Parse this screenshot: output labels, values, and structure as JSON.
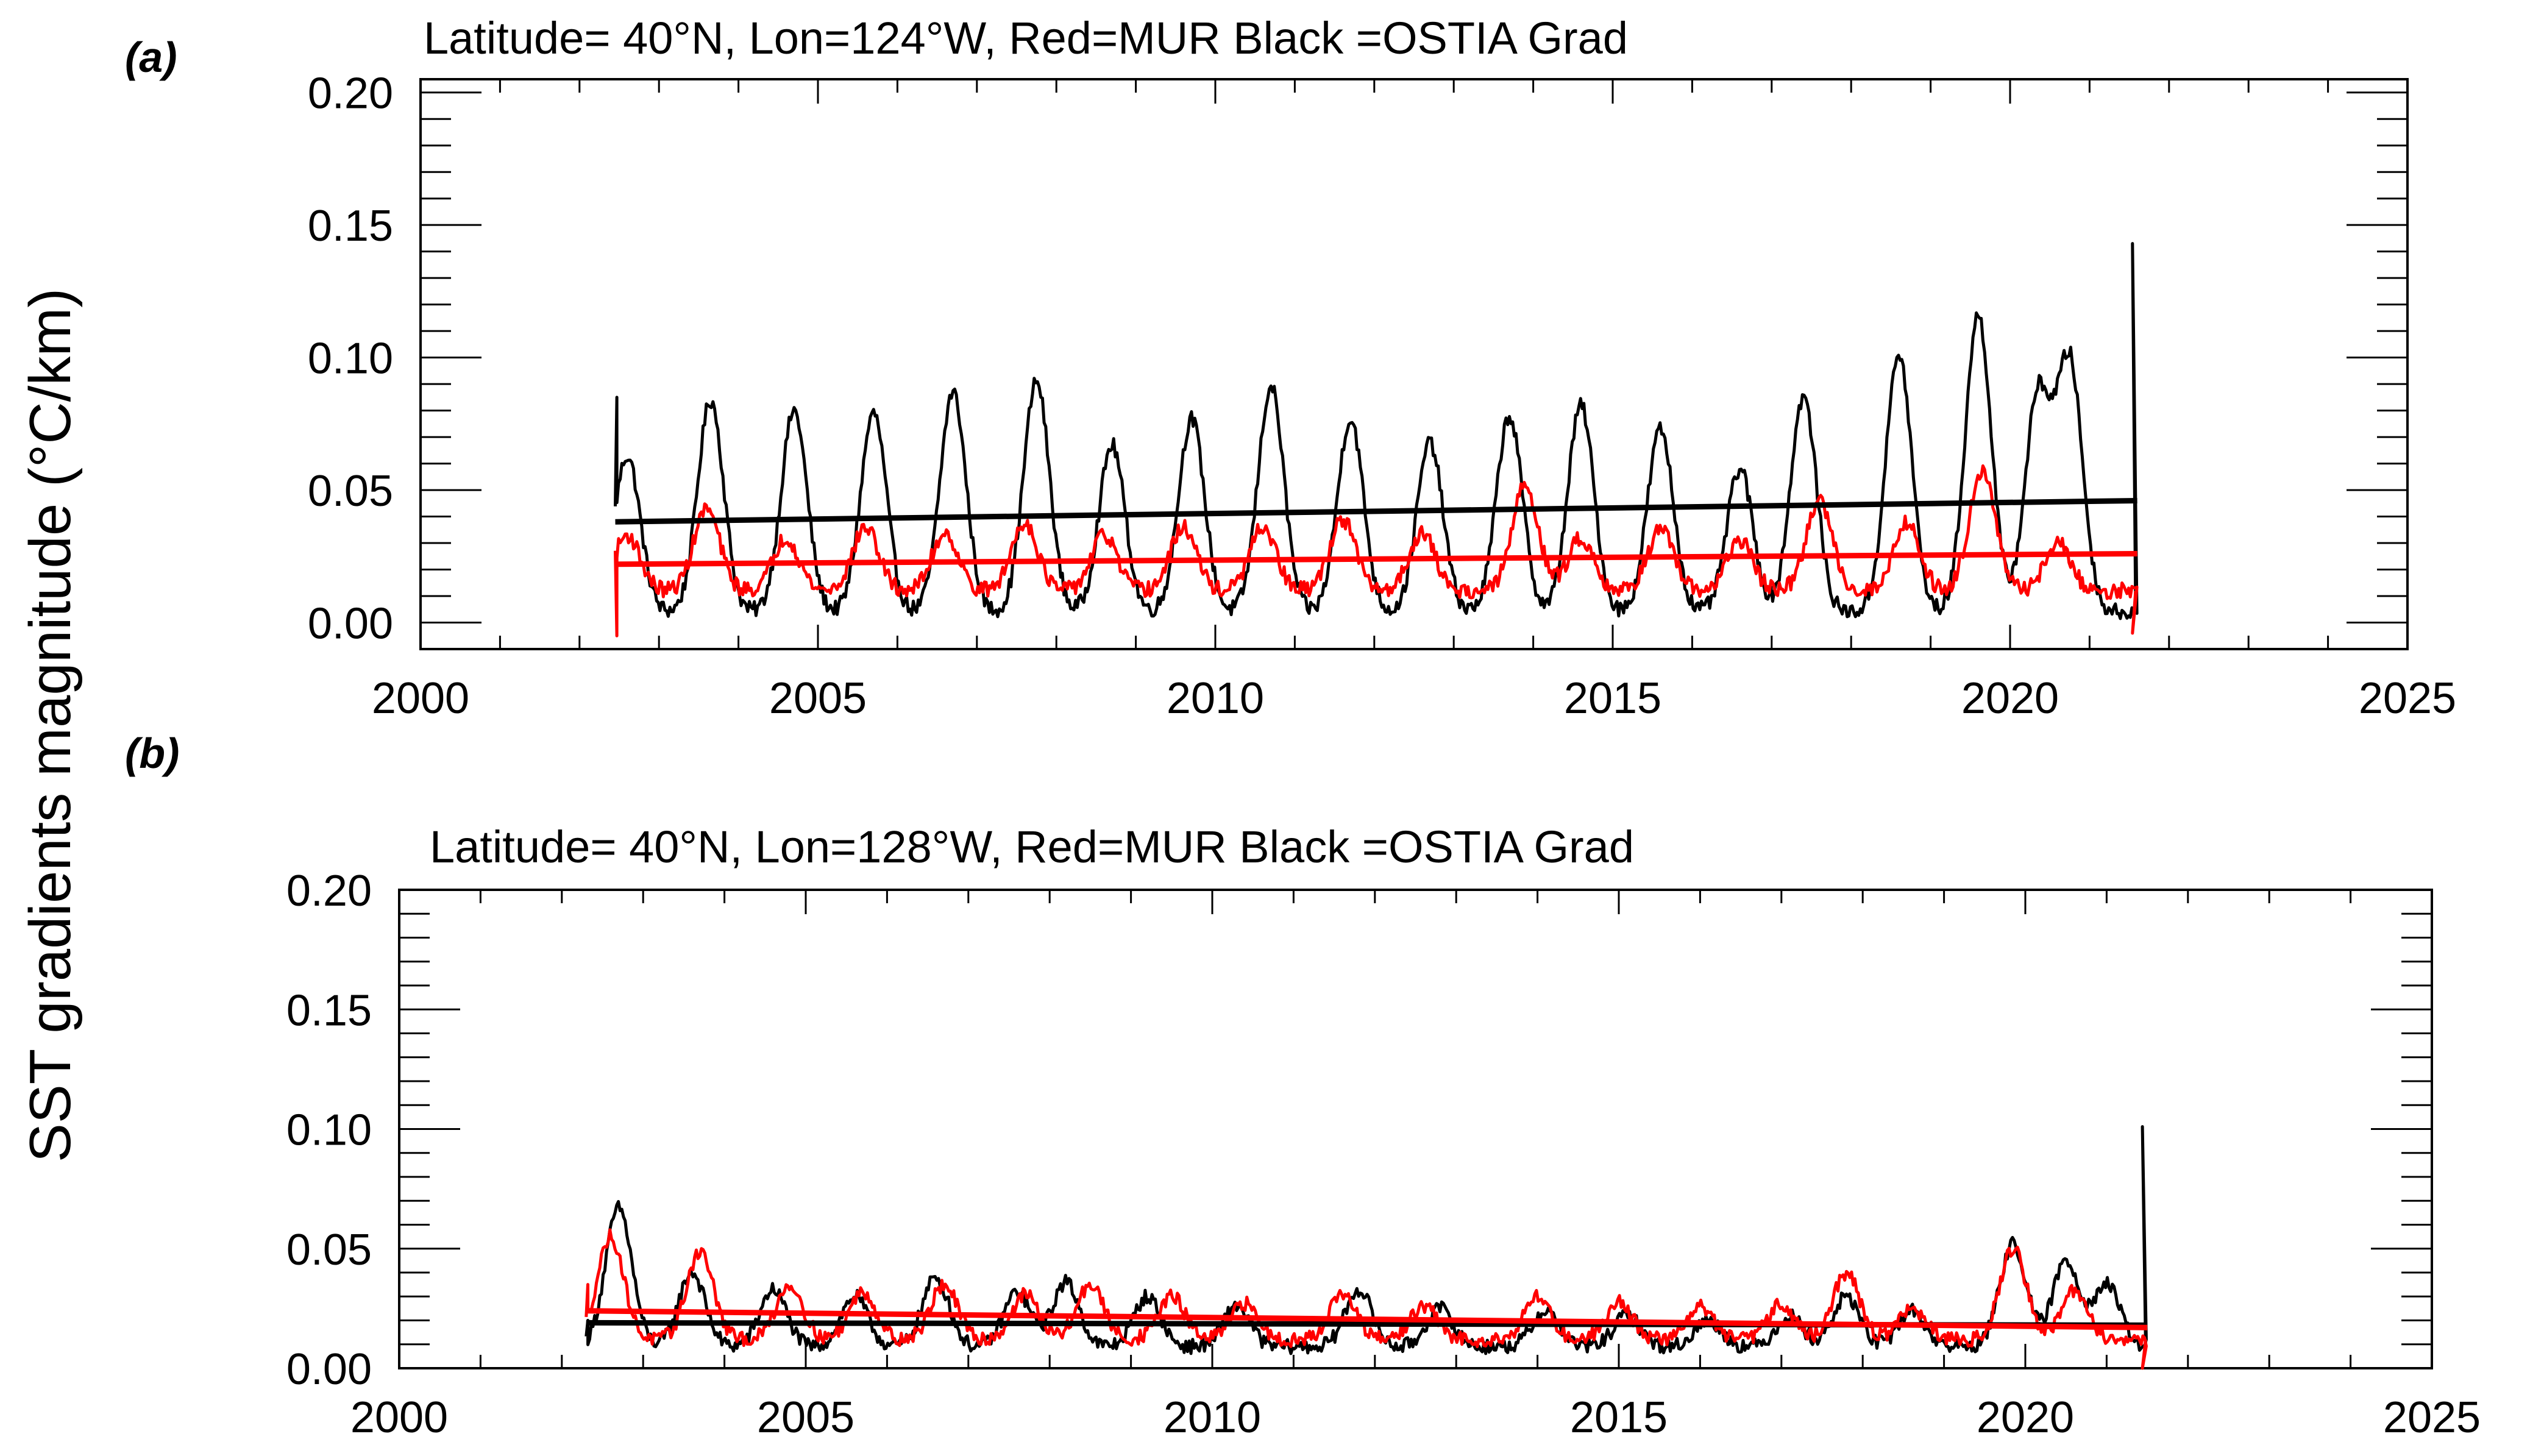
{
  "figure": {
    "ylabel": "SST gradients magnitude (°C/km)"
  },
  "chart_data": [
    {
      "type": "line",
      "panel_label": "(a)",
      "title": "Latitude= 40°N, Lon=124°W, Red=MUR Black =OSTIA Grad",
      "xlim": [
        2000,
        2025
      ],
      "ylim": [
        -0.01,
        0.205
      ],
      "xticks": [
        2000,
        2005,
        2010,
        2015,
        2020,
        2025
      ],
      "xtick_labels": [
        "2000",
        "2005",
        "2010",
        "2015",
        "2020",
        "2025"
      ],
      "yticks": [
        0.0,
        0.05,
        0.1,
        0.15,
        0.2
      ],
      "ytick_labels": [
        "0.00",
        "0.05",
        "0.10",
        "0.15",
        "0.20"
      ],
      "series": [
        {
          "name": "OSTIA",
          "color": "#000000",
          "x_start": 2002.45,
          "x_end": 2021.6,
          "start_value": 0.085,
          "baseline": 0.004,
          "annual_peaks": [
            [
              2002.6,
              0.063
            ],
            [
              2003.65,
              0.084
            ],
            [
              2004.7,
              0.08
            ],
            [
              2005.7,
              0.079
            ],
            [
              2006.7,
              0.087
            ],
            [
              2007.75,
              0.091
            ],
            [
              2008.7,
              0.067
            ],
            [
              2009.7,
              0.077
            ],
            [
              2010.7,
              0.089
            ],
            [
              2011.7,
              0.077
            ],
            [
              2012.7,
              0.068
            ],
            [
              2013.7,
              0.078
            ],
            [
              2014.6,
              0.082
            ],
            [
              2015.6,
              0.073
            ],
            [
              2016.6,
              0.058
            ],
            [
              2017.4,
              0.085
            ],
            [
              2018.6,
              0.101
            ],
            [
              2019.6,
              0.116
            ],
            [
              2020.35,
              0.085
            ],
            [
              2020.75,
              0.098
            ]
          ],
          "end_spike": 0.143,
          "trend": [
            [
              2002.45,
              0.038
            ],
            [
              2021.6,
              0.046
            ]
          ]
        },
        {
          "name": "MUR",
          "color": "#ff0000",
          "x_start": 2002.45,
          "x_end": 2021.6,
          "start_value": -0.005,
          "baseline": 0.012,
          "annual_peaks": [
            [
              2002.6,
              0.033
            ],
            [
              2003.6,
              0.043
            ],
            [
              2004.6,
              0.032
            ],
            [
              2005.6,
              0.036
            ],
            [
              2006.6,
              0.034
            ],
            [
              2007.6,
              0.038
            ],
            [
              2008.6,
              0.033
            ],
            [
              2009.6,
              0.036
            ],
            [
              2010.6,
              0.036
            ],
            [
              2011.6,
              0.039
            ],
            [
              2012.6,
              0.034
            ],
            [
              2013.9,
              0.052
            ],
            [
              2014.6,
              0.032
            ],
            [
              2015.6,
              0.035
            ],
            [
              2016.6,
              0.031
            ],
            [
              2017.6,
              0.046
            ],
            [
              2018.7,
              0.038
            ],
            [
              2019.65,
              0.058
            ],
            [
              2020.6,
              0.03
            ]
          ],
          "end_spike": -0.004,
          "trend": [
            [
              2002.45,
              0.022
            ],
            [
              2021.6,
              0.026
            ]
          ]
        }
      ]
    },
    {
      "type": "line",
      "panel_label": "(b)",
      "title": "Latitude= 40°N, Lon=128°W, Red=MUR Black =OSTIA Grad",
      "xlim": [
        2000,
        2025
      ],
      "ylim": [
        0.0,
        0.2
      ],
      "xticks": [
        2000,
        2005,
        2010,
        2015,
        2020,
        2025
      ],
      "xtick_labels": [
        "2000",
        "2005",
        "2010",
        "2015",
        "2020",
        "2025"
      ],
      "yticks": [
        0.0,
        0.05,
        0.1,
        0.15,
        0.2
      ],
      "ytick_labels": [
        "0.00",
        "0.05",
        "0.10",
        "0.15",
        "0.20"
      ],
      "series": [
        {
          "name": "OSTIA",
          "color": "#000000",
          "x_start": 2002.3,
          "x_end": 2021.5,
          "start_value": 0.02,
          "baseline": 0.009,
          "annual_peaks": [
            [
              2002.7,
              0.067
            ],
            [
              2003.6,
              0.04
            ],
            [
              2004.6,
              0.033
            ],
            [
              2005.6,
              0.03
            ],
            [
              2006.6,
              0.038
            ],
            [
              2007.6,
              0.032
            ],
            [
              2008.2,
              0.036
            ],
            [
              2009.2,
              0.03
            ],
            [
              2010.3,
              0.026
            ],
            [
              2011.8,
              0.033
            ],
            [
              2012.8,
              0.025
            ],
            [
              2014.1,
              0.024
            ],
            [
              2015.1,
              0.022
            ],
            [
              2016.1,
              0.02
            ],
            [
              2017.1,
              0.022
            ],
            [
              2017.8,
              0.03
            ],
            [
              2018.6,
              0.024
            ],
            [
              2019.85,
              0.052
            ],
            [
              2020.5,
              0.045
            ],
            [
              2021.0,
              0.035
            ]
          ],
          "end_spike": 0.101,
          "trend": [
            [
              2002.3,
              0.019
            ],
            [
              2021.5,
              0.018
            ]
          ]
        },
        {
          "name": "MUR",
          "color": "#ff0000",
          "x_start": 2002.3,
          "x_end": 2021.5,
          "start_value": 0.035,
          "baseline": 0.012,
          "annual_peaks": [
            [
              2002.6,
              0.055
            ],
            [
              2003.7,
              0.049
            ],
            [
              2004.8,
              0.035
            ],
            [
              2005.7,
              0.032
            ],
            [
              2006.7,
              0.035
            ],
            [
              2007.7,
              0.031
            ],
            [
              2008.5,
              0.035
            ],
            [
              2009.5,
              0.03
            ],
            [
              2010.4,
              0.027
            ],
            [
              2011.6,
              0.031
            ],
            [
              2012.6,
              0.026
            ],
            [
              2014.0,
              0.03
            ],
            [
              2015.0,
              0.028
            ],
            [
              2016.0,
              0.026
            ],
            [
              2017.0,
              0.027
            ],
            [
              2017.8,
              0.04
            ],
            [
              2018.6,
              0.025
            ],
            [
              2019.85,
              0.05
            ],
            [
              2020.6,
              0.032
            ]
          ],
          "end_spike": 0.0,
          "trend": [
            [
              2002.3,
              0.024
            ],
            [
              2021.5,
              0.017
            ]
          ]
        }
      ]
    }
  ]
}
